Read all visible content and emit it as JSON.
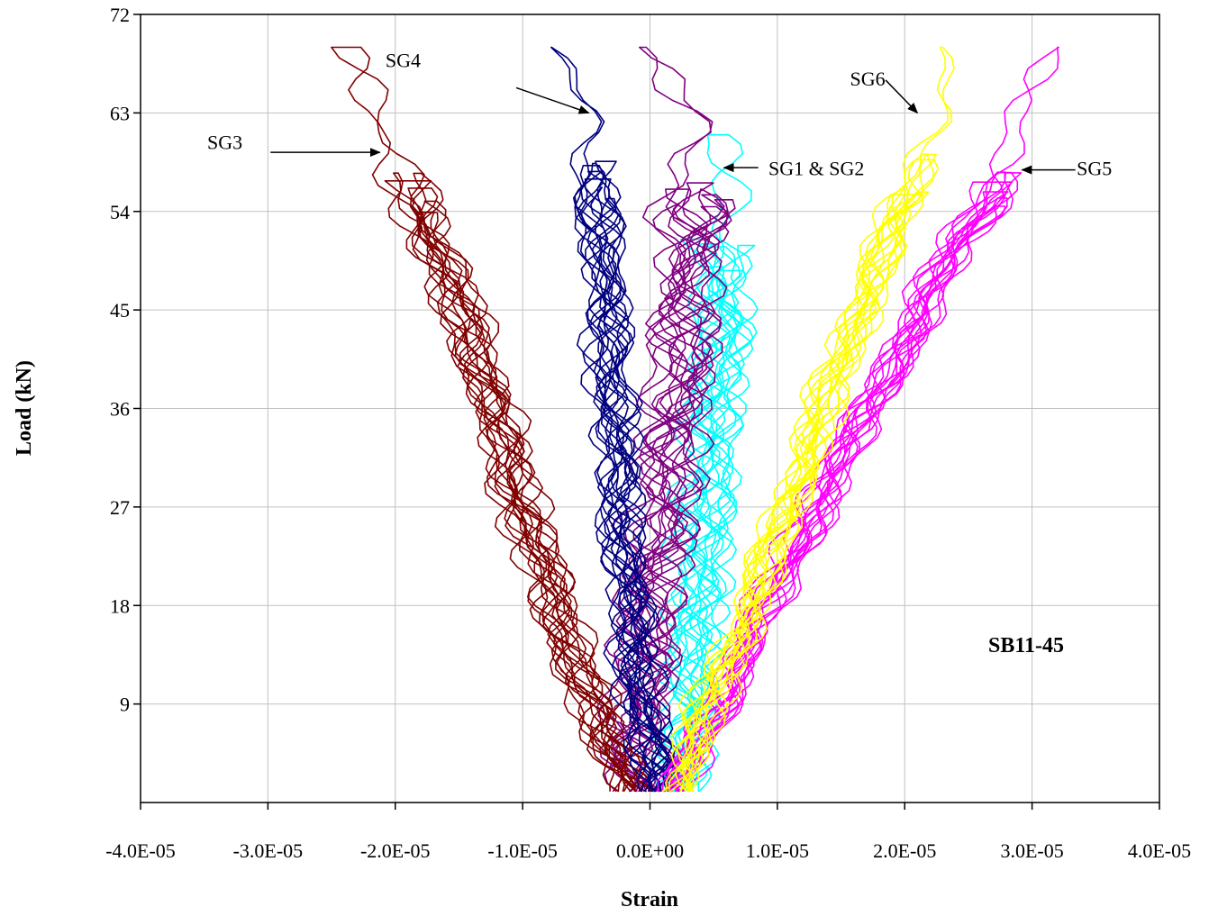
{
  "chart_data": {
    "type": "line",
    "title": "",
    "xlabel": "Strain",
    "ylabel": "Load (kN)",
    "xlim": [
      -4e-05,
      4e-05
    ],
    "ylim": [
      0,
      72
    ],
    "x_ticks": [
      -4e-05,
      -3e-05,
      -2e-05,
      -1e-05,
      0,
      1e-05,
      2e-05,
      3e-05,
      4e-05
    ],
    "x_tick_labels": [
      "-4.0E-05",
      "-3.0E-05",
      "-2.0E-05",
      "-1.0E-05",
      "0.0E+00",
      "1.0E-05",
      "2.0E-05",
      "3.0E-05",
      "4.0E-05"
    ],
    "y_ticks": [
      9,
      18,
      27,
      36,
      45,
      54,
      63,
      72
    ],
    "y_tick_labels": [
      "9",
      "18",
      "27",
      "36",
      "45",
      "54",
      "63",
      "72"
    ],
    "grid": true,
    "legend": "none",
    "panel_label": "SB11-45",
    "series": [
      {
        "key": "SG1",
        "color": "#00FFFF",
        "cycles": 8,
        "wobble": 2.5e-06,
        "x": [
          2e-06,
          2.5e-06,
          3e-06,
          3.5e-06,
          4e-06,
          4.5e-06,
          5e-06,
          5.3e-06,
          5e-06,
          4.2e-06
        ],
        "y": [
          1,
          7,
          14,
          21,
          28,
          35,
          42,
          50,
          57,
          61
        ]
      },
      {
        "key": "SG2",
        "color": "#800080",
        "cycles": 8,
        "wobble": 3e-06,
        "x": [
          -1e-06,
          -1e-06,
          -5e-07,
          5e-07,
          1.5e-06,
          2.2e-06,
          2.8e-06,
          3.2e-06,
          3.5e-06,
          2e-06
        ],
        "y": [
          1,
          8,
          16,
          24,
          32,
          40,
          48,
          55,
          60,
          69
        ]
      },
      {
        "key": "SG3",
        "color": "#800000",
        "cycles": 8,
        "wobble": 2.2e-06,
        "x": [
          -1e-06,
          -4e-06,
          -6e-06,
          -8.5e-06,
          -1.1e-05,
          -1.3e-05,
          -1.5e-05,
          -1.75e-05,
          -2e-05,
          -2.35e-05
        ],
        "y": [
          1,
          6,
          13,
          21,
          30,
          38,
          45,
          52,
          59,
          69
        ]
      },
      {
        "key": "SG4",
        "color": "#000080",
        "cycles": 8,
        "wobble": 2e-06,
        "x": [
          5e-07,
          -5e-07,
          -1.5e-06,
          -2.2e-06,
          -2.8e-06,
          -3.2e-06,
          -3.8e-06,
          -4.2e-06,
          -4.8e-06,
          -6e-06
        ],
        "y": [
          1,
          9,
          18,
          27,
          36,
          45,
          52,
          58,
          63,
          69
        ]
      },
      {
        "key": "SG5",
        "color": "#FF00FF",
        "cycles": 8,
        "wobble": 1.8e-06,
        "x": [
          2e-06,
          4e-06,
          6.5e-06,
          9.5e-06,
          1.3e-05,
          1.65e-05,
          2e-05,
          2.3e-05,
          2.7e-05,
          3.2e-05
        ],
        "y": [
          1,
          6,
          12,
          19,
          27,
          35,
          42,
          49,
          56,
          69
        ]
      },
      {
        "key": "SG6",
        "color": "#FFFF00",
        "cycles": 8,
        "wobble": 1.8e-06,
        "x": [
          2e-06,
          3.5e-06,
          5.5e-06,
          8.5e-06,
          1.1e-05,
          1.35e-05,
          1.6e-05,
          1.85e-05,
          2.1e-05,
          2.35e-05
        ],
        "y": [
          1,
          6,
          12,
          20,
          28,
          36,
          44,
          51,
          58,
          69
        ]
      }
    ],
    "annotations": [
      {
        "key": "sg4",
        "text": "SG4",
        "text_x": -1.8e-05,
        "text_y": 67.2,
        "anchor": "end",
        "arrow_from": [
          -1.05e-05,
          65.3
        ],
        "arrow_to": [
          -4.8e-06,
          63.0
        ]
      },
      {
        "key": "sg3",
        "text": "SG3",
        "text_x": -3.2e-05,
        "text_y": 59.7,
        "anchor": "end",
        "arrow_from": [
          -2.98e-05,
          59.4
        ],
        "arrow_to": [
          -2.12e-05,
          59.4
        ]
      },
      {
        "key": "sg6",
        "text": "SG6",
        "text_x": 1.57e-05,
        "text_y": 65.5,
        "anchor": "start",
        "arrow_from": [
          1.85e-05,
          66.0
        ],
        "arrow_to": [
          2.1e-05,
          63.0
        ]
      },
      {
        "key": "sg1-sg2",
        "text": "SG1 & SG2",
        "text_x": 9.3e-06,
        "text_y": 57.3,
        "anchor": "start",
        "arrow_from": [
          8.5e-06,
          58.0
        ],
        "arrow_to": [
          5.8e-06,
          58.0
        ]
      },
      {
        "key": "sg5",
        "text": "SG5",
        "text_x": 3.35e-05,
        "text_y": 57.3,
        "anchor": "start",
        "arrow_from": [
          3.34e-05,
          57.8
        ],
        "arrow_to": [
          2.92e-05,
          57.8
        ]
      }
    ]
  }
}
